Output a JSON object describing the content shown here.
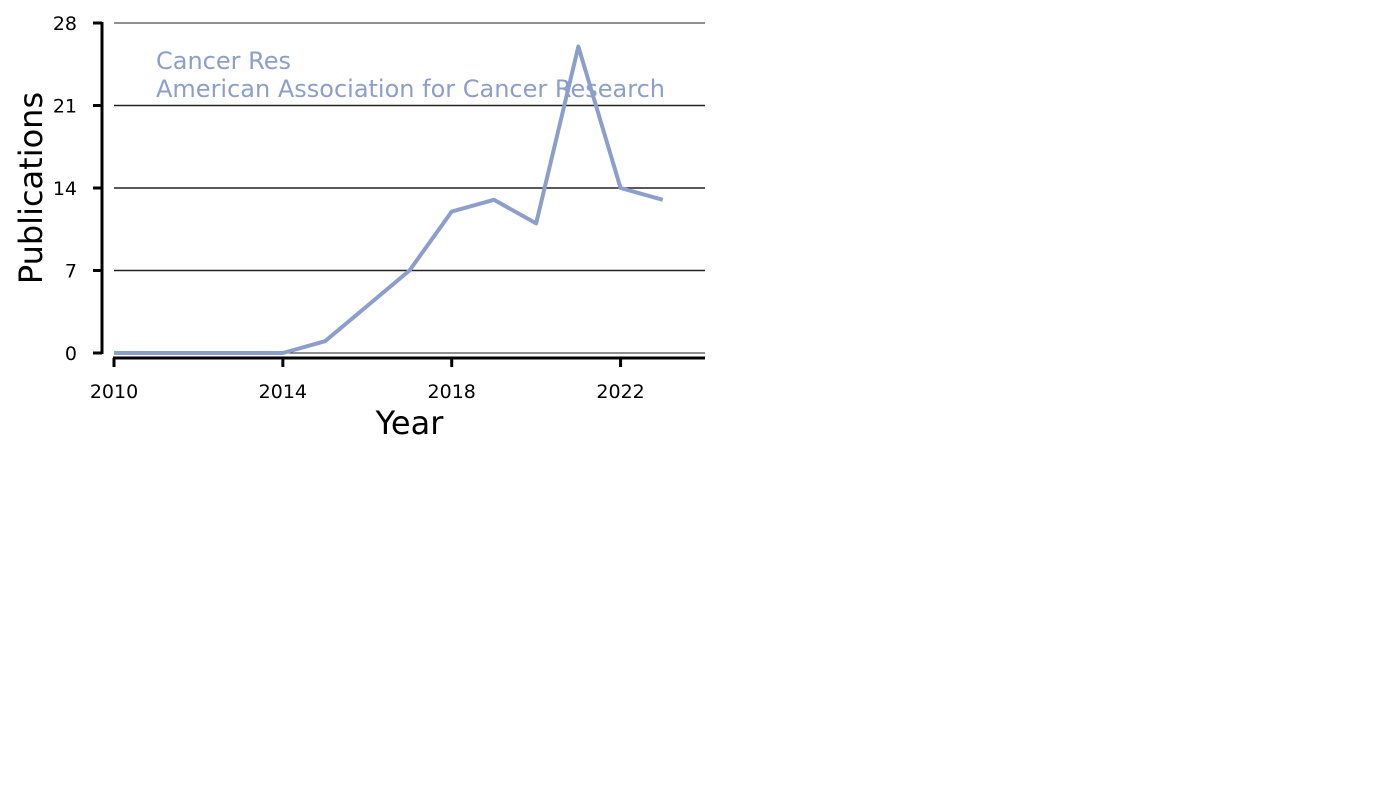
{
  "chart_data": {
    "type": "line",
    "title": "",
    "xlabel": "Year",
    "ylabel": "Publications",
    "xlim": [
      2010,
      2024
    ],
    "ylim": [
      0,
      28
    ],
    "x_ticks": [
      2010,
      2014,
      2018,
      2022
    ],
    "y_ticks": [
      0,
      7,
      14,
      21,
      28
    ],
    "grid": "horizontal",
    "legend": "none",
    "annotation": {
      "lines": [
        "Cancer Res",
        "American Association for Cancer Research"
      ]
    },
    "series": [
      {
        "color": "#8c9fca",
        "x": [
          2010,
          2011,
          2012,
          2013,
          2014,
          2015,
          2016,
          2017,
          2018,
          2019,
          2020,
          2021,
          2022,
          2023
        ],
        "y": [
          0,
          0,
          0,
          0,
          0,
          1,
          4,
          7,
          12,
          13,
          11,
          26,
          14,
          13
        ]
      }
    ]
  }
}
